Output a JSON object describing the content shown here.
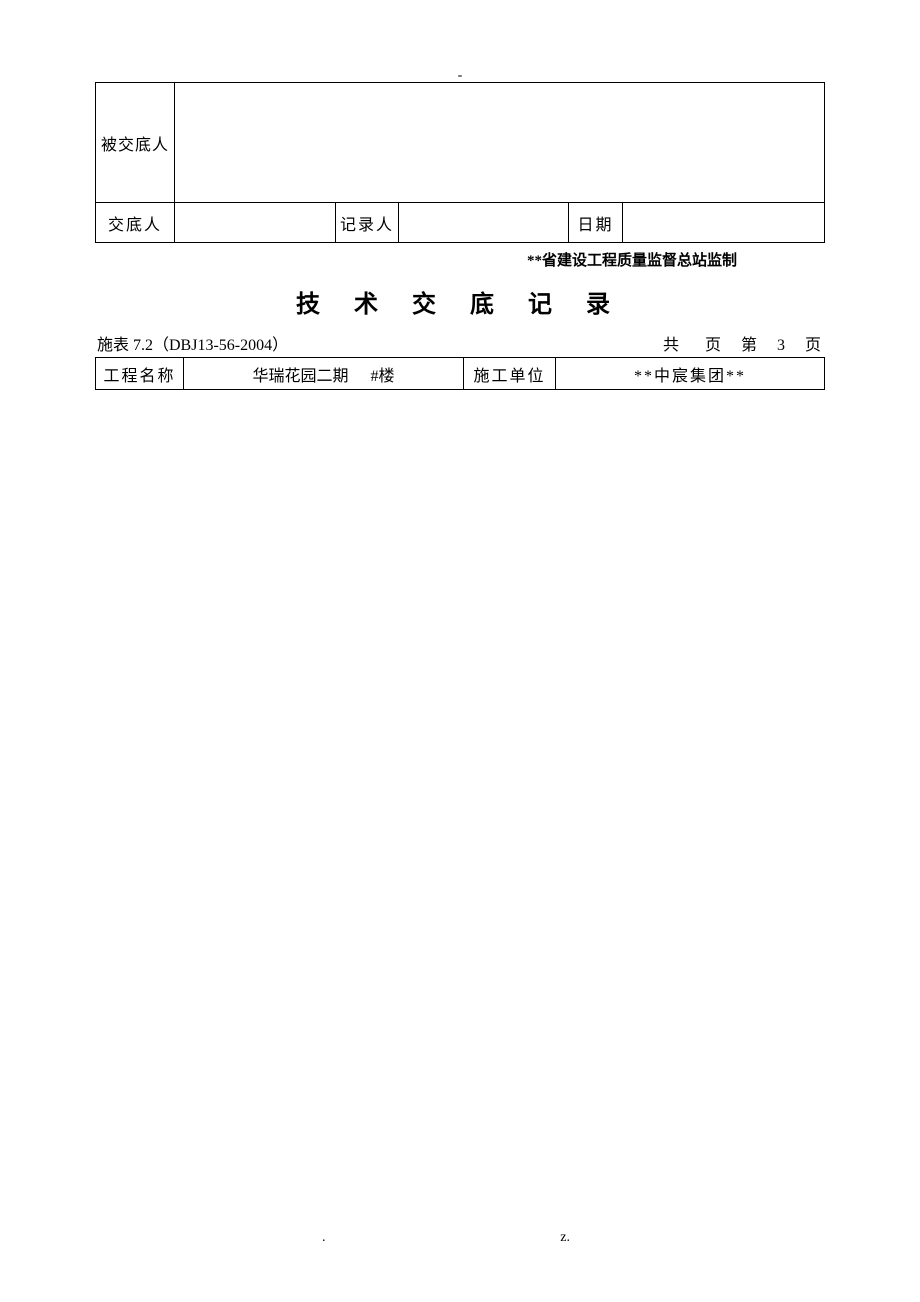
{
  "top_dash": "-",
  "upper_table": {
    "recipient_label": "被交底人",
    "disclosed_by_label": "交底人",
    "recorder_label": "记录人",
    "date_label": "日期",
    "disclosed_by_value": "",
    "recorder_value": "",
    "date_value": "",
    "recipient_value": ""
  },
  "supervisor_line": "**省建设工程质量监督总站监制",
  "main_title": "技 术 交 底 记 录",
  "meta": {
    "form_code": "施表 7.2（DBJ13-56-2004）",
    "page_info_prefix": "共",
    "page_info_mid1": "页",
    "page_info_mid2": "第",
    "page_number": "3",
    "page_info_suffix": "页"
  },
  "info_table": {
    "project_label": "工程名称",
    "project_name": "华瑞花园二期",
    "building_suffix": "#楼",
    "contractor_label": "施工单位",
    "contractor_value": "**中宸集团**"
  },
  "footer": {
    "left": ".",
    "right": "z."
  },
  "colors": {
    "text": "#000000",
    "background": "#ffffff",
    "border": "#000000"
  }
}
